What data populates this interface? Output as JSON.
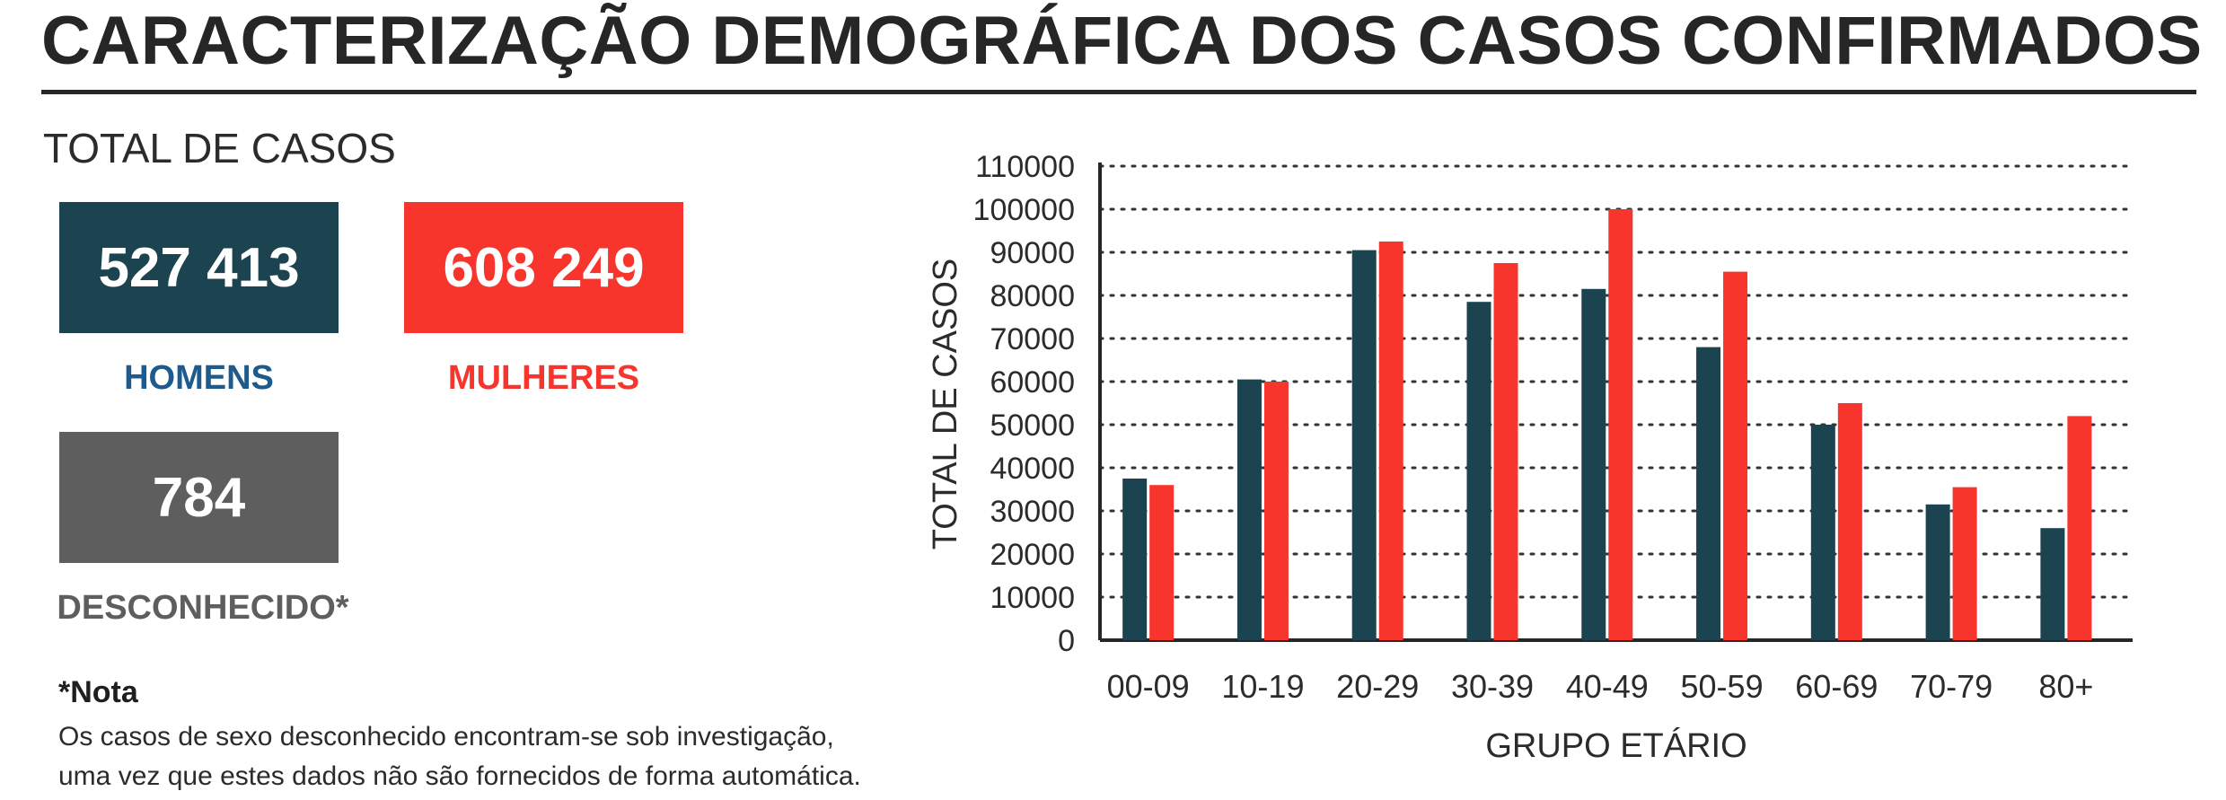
{
  "header": {
    "title": "CARACTERIZAÇÃO DEMOGRÁFICA DOS CASOS CONFIRMADOS"
  },
  "totals": {
    "label": "TOTAL DE CASOS",
    "men": {
      "value": "527 413",
      "label": "HOMENS",
      "color": "#1c4350",
      "label_color": "#1f5a8c"
    },
    "women": {
      "value": "608 249",
      "label": "MULHERES",
      "color": "#f7352d",
      "label_color": "#f7352d"
    },
    "unknown": {
      "value": "784",
      "label": "DESCONHECIDO*",
      "color": "#5e5e5e",
      "label_color": "#5e5e5e"
    }
  },
  "note": {
    "title": "*Nota",
    "lines": [
      "Os casos de sexo desconhecido encontram-se sob investigação,",
      "uma vez que estes dados não são fornecidos de forma automática."
    ]
  },
  "chart_data": {
    "type": "bar",
    "title": "",
    "xlabel": "GRUPO ETÁRIO",
    "ylabel": "TOTAL DE CASOS",
    "categories": [
      "00-09",
      "10-19",
      "20-29",
      "30-39",
      "40-49",
      "50-59",
      "60-69",
      "70-79",
      "80+"
    ],
    "series": [
      {
        "color": "#1c4350",
        "values": [
          37500,
          60500,
          90500,
          78500,
          81500,
          68000,
          50000,
          31500,
          26000
        ]
      },
      {
        "color": "#f7352d",
        "values": [
          36000,
          60000,
          92500,
          87500,
          100000,
          85500,
          55000,
          35500,
          52000
        ]
      }
    ],
    "ylim": [
      0,
      110000
    ],
    "yticks": [
      "0",
      "10000",
      "20000",
      "30000",
      "40000",
      "50000",
      "60000",
      "70000",
      "80000",
      "90000",
      "100000",
      "110000"
    ],
    "grid": "horizontal-dotted",
    "legend": "none"
  }
}
